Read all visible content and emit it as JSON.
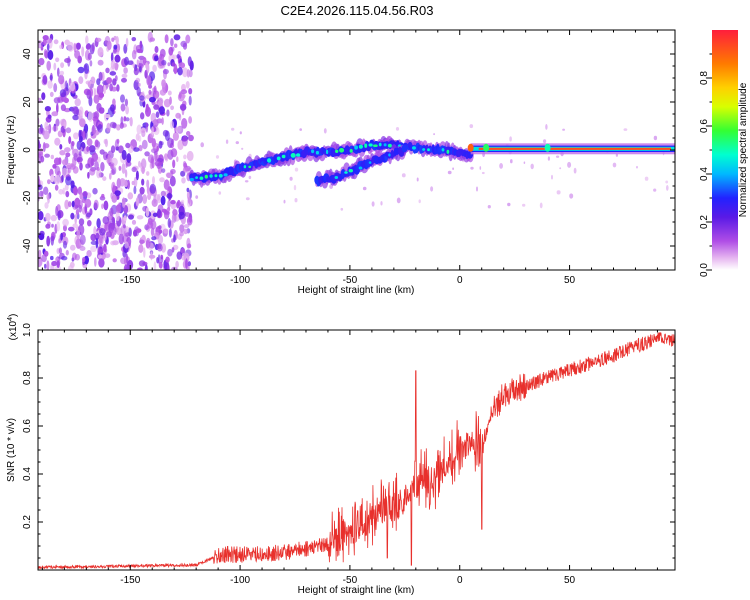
{
  "title": "C2E4.2026.115.04.56.R03",
  "chart_data": [
    {
      "type": "heatmap",
      "title": "C2E4.2026.115.04.56.R03",
      "xlabel": "Height of straight line (km)",
      "ylabel": "Frequency (Hz)",
      "xlim": [
        -192,
        98
      ],
      "ylim": [
        -50,
        50
      ],
      "x_ticks": [
        -150,
        -100,
        -50,
        0,
        50
      ],
      "y_ticks": [
        -40,
        -20,
        0,
        20,
        40
      ],
      "colorbar": {
        "label": "Normalized spectral amplitude",
        "range": [
          0,
          1
        ],
        "ticks": [
          0.0,
          0.2,
          0.4,
          0.6,
          0.8
        ]
      },
      "features": [
        {
          "name": "noise-region",
          "x_range": [
            -192,
            -122
          ],
          "freq_range": [
            -50,
            47
          ],
          "amplitude": 0.1
        },
        {
          "name": "upper-trace",
          "points": [
            [
              -122,
              -12
            ],
            [
              -110,
              -11
            ],
            [
              -100,
              -8
            ],
            [
              -90,
              -5
            ],
            [
              -80,
              -3
            ],
            [
              -70,
              -1
            ],
            [
              -60,
              -1
            ],
            [
              -50,
              0
            ],
            [
              -40,
              2
            ],
            [
              -30,
              2
            ],
            [
              -20,
              1
            ],
            [
              -10,
              0
            ],
            [
              0,
              -1
            ],
            [
              5,
              -2
            ]
          ],
          "amplitude": [
            0.25,
            0.45
          ]
        },
        {
          "name": "lower-trace",
          "points": [
            [
              -65,
              -13
            ],
            [
              -55,
              -11
            ],
            [
              -45,
              -7
            ],
            [
              -35,
              -3
            ],
            [
              -25,
              0
            ]
          ],
          "amplitude": [
            0.25,
            0.4
          ]
        },
        {
          "name": "stable-line",
          "x_range": [
            5,
            98
          ],
          "freq": 0.5,
          "amplitude": [
            0.85,
            0.95
          ]
        }
      ]
    },
    {
      "type": "line",
      "xlabel": "Height of straight line (km)",
      "ylabel": "SNR (10 * v/v)",
      "scale_label": "(x10",
      "scale_exp": "4",
      "scale_close": ")",
      "xlim": [
        -192,
        98
      ],
      "ylim": [
        0,
        1.0
      ],
      "x_ticks": [
        -150,
        -100,
        -50,
        0,
        50
      ],
      "y_ticks": [
        0.2,
        0.4,
        0.6,
        0.8,
        1.0
      ],
      "y_tick_labels": [
        "0.2",
        "0.4",
        "0.6",
        "0.8",
        "1.0"
      ],
      "series": [
        {
          "name": "SNR",
          "color": "#e8302c",
          "trend": {
            "x": [
              -192,
              -120,
              -110,
              -100,
              -80,
              -60,
              -45,
              -35,
              -25,
              -20,
              -10,
              -5,
              0,
              5,
              10,
              15,
              20,
              30,
              40,
              50,
              60,
              70,
              80,
              90,
              98
            ],
            "y": [
              0.01,
              0.02,
              0.06,
              0.06,
              0.07,
              0.1,
              0.17,
              0.25,
              0.28,
              0.35,
              0.38,
              0.42,
              0.5,
              0.52,
              0.5,
              0.66,
              0.72,
              0.76,
              0.8,
              0.83,
              0.86,
              0.89,
              0.93,
              0.96,
              0.95
            ]
          },
          "spikes": [
            [
              -20,
              0.83
            ],
            [
              10,
              0.17
            ],
            [
              -22,
              0.02
            ],
            [
              -33,
              0.05
            ]
          ]
        }
      ]
    }
  ]
}
